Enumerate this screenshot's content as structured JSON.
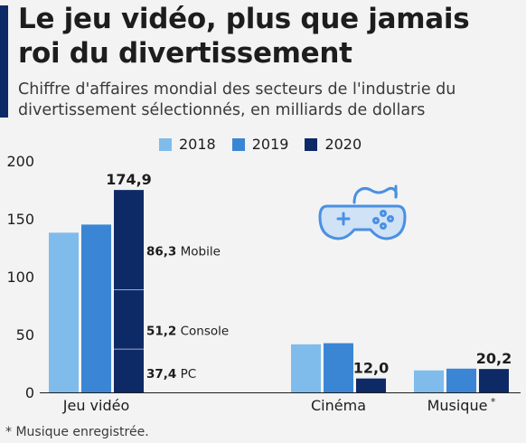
{
  "title": "Le jeu vidéo, plus que jamais roi du divertissement",
  "subtitle": "Chiffre d'affaires mondial des secteurs de l'industrie du divertissement sélectionnés, en milliards de dollars",
  "footnote": "* Musique enregistrée.",
  "colors": {
    "2018": "#7fbcec",
    "2019": "#3b86d4",
    "2020": "#0e2a66",
    "accent": "#0e2a66",
    "icon": "#4a90e2"
  },
  "icon_name": "gamepad-icon",
  "chart_data": {
    "type": "bar",
    "categories": [
      "Jeu vidéo",
      "Cinéma",
      "Musique *"
    ],
    "series": [
      {
        "name": "2018",
        "values": [
          138,
          41.5,
          19
        ]
      },
      {
        "name": "2019",
        "values": [
          145,
          42.5,
          20.5
        ]
      },
      {
        "name": "2020",
        "values": [
          174.9,
          12.0,
          20.2
        ]
      }
    ],
    "value_labels": [
      "174,9",
      "12,0",
      "20,2"
    ],
    "breakdown_2020_jeu_video": [
      {
        "value": 37.4,
        "value_label": "37,4",
        "name": "PC"
      },
      {
        "value": 51.2,
        "value_label": "51,2",
        "name": "Console"
      },
      {
        "value": 86.3,
        "value_label": "86,3",
        "name": "Mobile"
      }
    ],
    "ylim": [
      0,
      200
    ],
    "yticks": [
      "0",
      "50",
      "100",
      "150",
      "200"
    ],
    "grid": false,
    "legend_position": "top"
  }
}
